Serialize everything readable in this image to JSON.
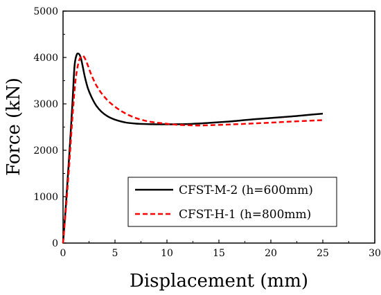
{
  "chart_data": {
    "type": "line",
    "xlabel": "Displacement (mm)",
    "ylabel": "Force (kN)",
    "xlim": [
      0,
      30
    ],
    "ylim": [
      0,
      5000
    ],
    "xticks": [
      0,
      5,
      10,
      15,
      20,
      25,
      30
    ],
    "yticks": [
      0,
      1000,
      2000,
      3000,
      4000,
      5000
    ],
    "grid": false,
    "legend_position": "lower-right",
    "series": [
      {
        "name": "CFST-M-2 (h=600mm)",
        "color": "#000000",
        "dash": "solid",
        "x": [
          0,
          0.3,
          0.6,
          0.9,
          1.1,
          1.3,
          1.5,
          1.7,
          1.9,
          2.1,
          2.4,
          2.8,
          3.2,
          3.7,
          4.3,
          5.0,
          6.0,
          7.0,
          8.0,
          9.0,
          10.0,
          12.0,
          14.0,
          16.0,
          18.0,
          20.0,
          22.0,
          24.0,
          25.0
        ],
        "y": [
          0,
          900,
          1900,
          3000,
          3800,
          4050,
          4080,
          4000,
          3800,
          3580,
          3330,
          3120,
          2960,
          2830,
          2730,
          2660,
          2600,
          2575,
          2565,
          2560,
          2560,
          2565,
          2590,
          2620,
          2660,
          2695,
          2730,
          2770,
          2790
        ]
      },
      {
        "name": "CFST-H-1 (h=800mm)",
        "color": "#ff0000",
        "dash": "dashed",
        "x": [
          0,
          0.3,
          0.6,
          0.9,
          1.2,
          1.5,
          1.8,
          2.0,
          2.3,
          2.7,
          3.2,
          3.8,
          4.5,
          5.5,
          6.5,
          7.5,
          8.5,
          10.0,
          11.0,
          12.0,
          13.0,
          14.0,
          16.0,
          18.0,
          20.0,
          22.0,
          24.0,
          25.0
        ],
        "y": [
          0,
          800,
          1700,
          2700,
          3500,
          3900,
          4030,
          4020,
          3880,
          3640,
          3400,
          3200,
          3030,
          2860,
          2740,
          2660,
          2610,
          2570,
          2550,
          2540,
          2535,
          2540,
          2555,
          2575,
          2595,
          2620,
          2640,
          2650
        ]
      }
    ]
  }
}
